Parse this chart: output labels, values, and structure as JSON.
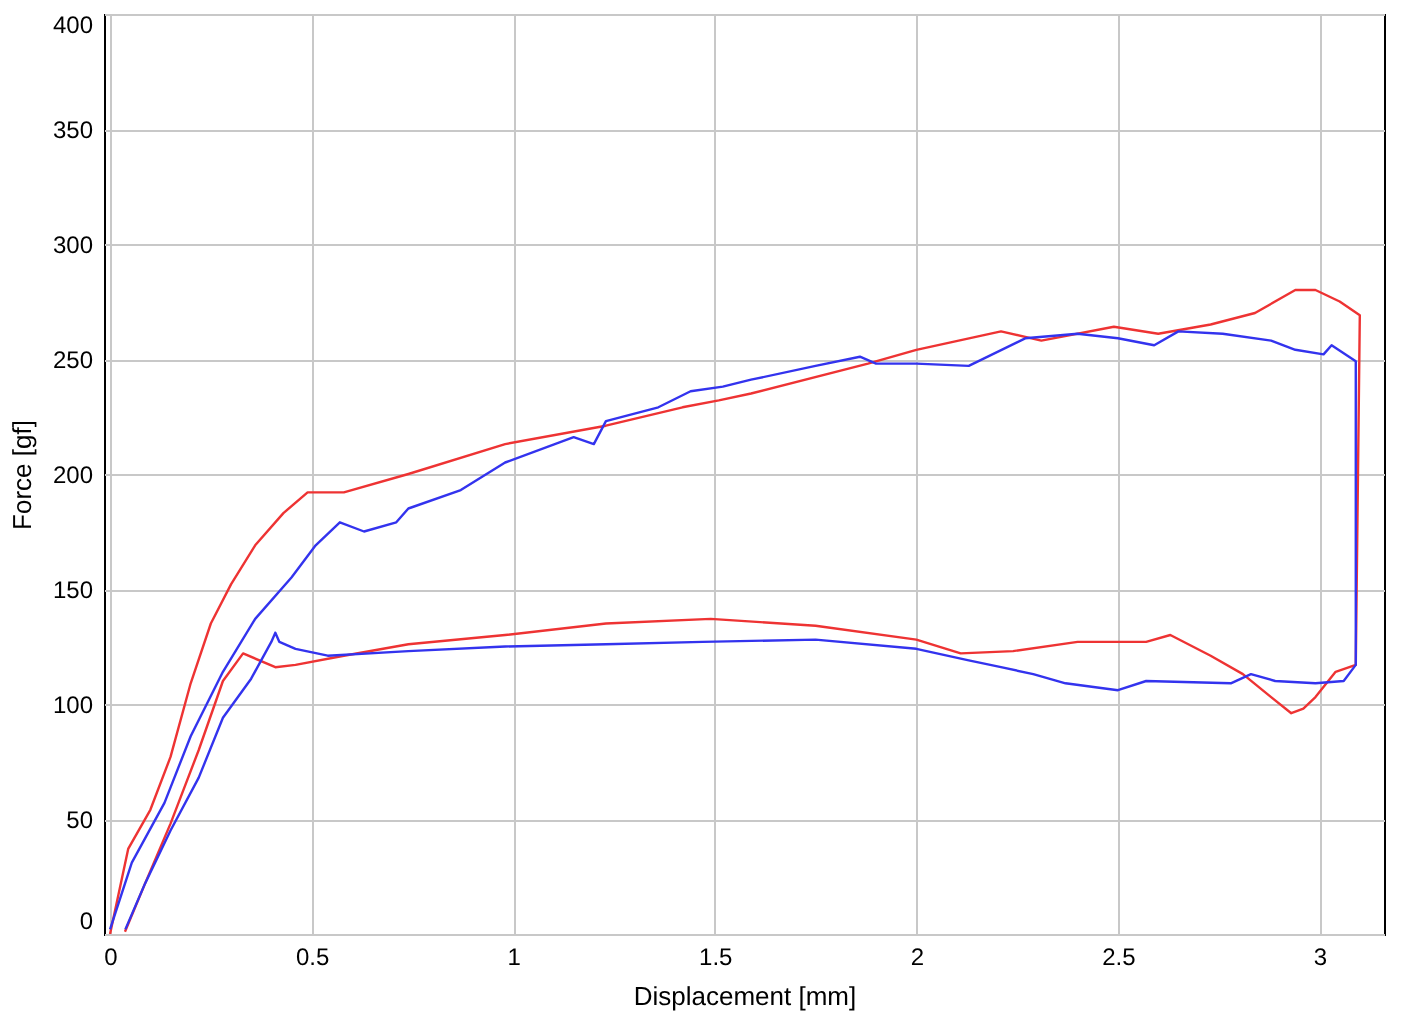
{
  "chart_data": {
    "type": "line",
    "xlabel": "Displacement [mm]",
    "ylabel": "Force [gf]",
    "xlim": [
      -0.015,
      3.16
    ],
    "ylim": [
      0,
      400
    ],
    "xticks": [
      0,
      0.5,
      1,
      1.5,
      2,
      2.5,
      3
    ],
    "yticks": [
      0,
      50,
      100,
      150,
      200,
      250,
      300,
      350,
      400
    ],
    "grid": true,
    "series": [
      {
        "color": "#ee3333",
        "x": [
          0,
          0.045,
          0.1,
          0.15,
          0.2,
          0.25,
          0.3,
          0.36,
          0.43,
          0.49,
          0.58,
          0.74,
          0.98,
          1.23,
          1.42,
          1.51,
          1.59,
          1.88,
          2.0,
          2.21,
          2.31,
          2.49,
          2.6,
          2.73,
          2.84,
          2.94,
          2.99,
          3.05,
          3.1,
          3.09,
          3.04,
          2.99,
          2.96,
          2.93,
          2.88,
          2.81,
          2.73,
          2.63,
          2.57,
          2.4,
          2.24,
          2.11,
          2.0,
          1.75,
          1.49,
          1.23,
          0.98,
          0.74,
          0.58,
          0.46,
          0.41,
          0.33,
          0.28,
          0.22,
          0.15,
          0.087,
          0.037
        ],
        "values": [
          0,
          37,
          54,
          77,
          109,
          135,
          152,
          169,
          183,
          192,
          192,
          200,
          213,
          221,
          229,
          232,
          235,
          248,
          254,
          262,
          258,
          264,
          261,
          265,
          270,
          280,
          280,
          275,
          269,
          117,
          114,
          103,
          98,
          96,
          103,
          113,
          121,
          130,
          127,
          127,
          123,
          122,
          128,
          134,
          137,
          135,
          130,
          126,
          121,
          117,
          116,
          122,
          110,
          80,
          48,
          22,
          1
        ]
      },
      {
        "color": "#3333ee",
        "x": [
          0,
          0.054,
          0.135,
          0.2,
          0.28,
          0.36,
          0.45,
          0.51,
          0.57,
          0.63,
          0.71,
          0.74,
          0.87,
          0.98,
          1.15,
          1.2,
          1.23,
          1.36,
          1.44,
          1.52,
          1.59,
          1.75,
          1.86,
          1.9,
          2.0,
          2.13,
          2.27,
          2.4,
          2.5,
          2.59,
          2.65,
          2.76,
          2.88,
          2.94,
          3.01,
          3.03,
          3.09,
          3.09,
          3.06,
          2.99,
          2.89,
          2.83,
          2.78,
          2.57,
          2.5,
          2.37,
          2.29,
          2.21,
          2.13,
          2.0,
          1.75,
          1.47,
          1.23,
          0.98,
          0.74,
          0.54,
          0.46,
          0.42,
          0.41,
          0.4,
          0.35,
          0.28,
          0.22,
          0.15,
          0.087,
          0.038
        ],
        "values": [
          2,
          31,
          57,
          86,
          114,
          137,
          155,
          169,
          179,
          175,
          179,
          185,
          193,
          205,
          216,
          213,
          223,
          229,
          236,
          238,
          241,
          247,
          251,
          248,
          248,
          247,
          259,
          261,
          259,
          256,
          262,
          261,
          258,
          254,
          252,
          256,
          249,
          117,
          110,
          109,
          110,
          113,
          109,
          110,
          106,
          109,
          113,
          116,
          119,
          124,
          128,
          127,
          126,
          125,
          123,
          121,
          124,
          127,
          131,
          127,
          111,
          94,
          68,
          45,
          22,
          2
        ]
      }
    ]
  }
}
